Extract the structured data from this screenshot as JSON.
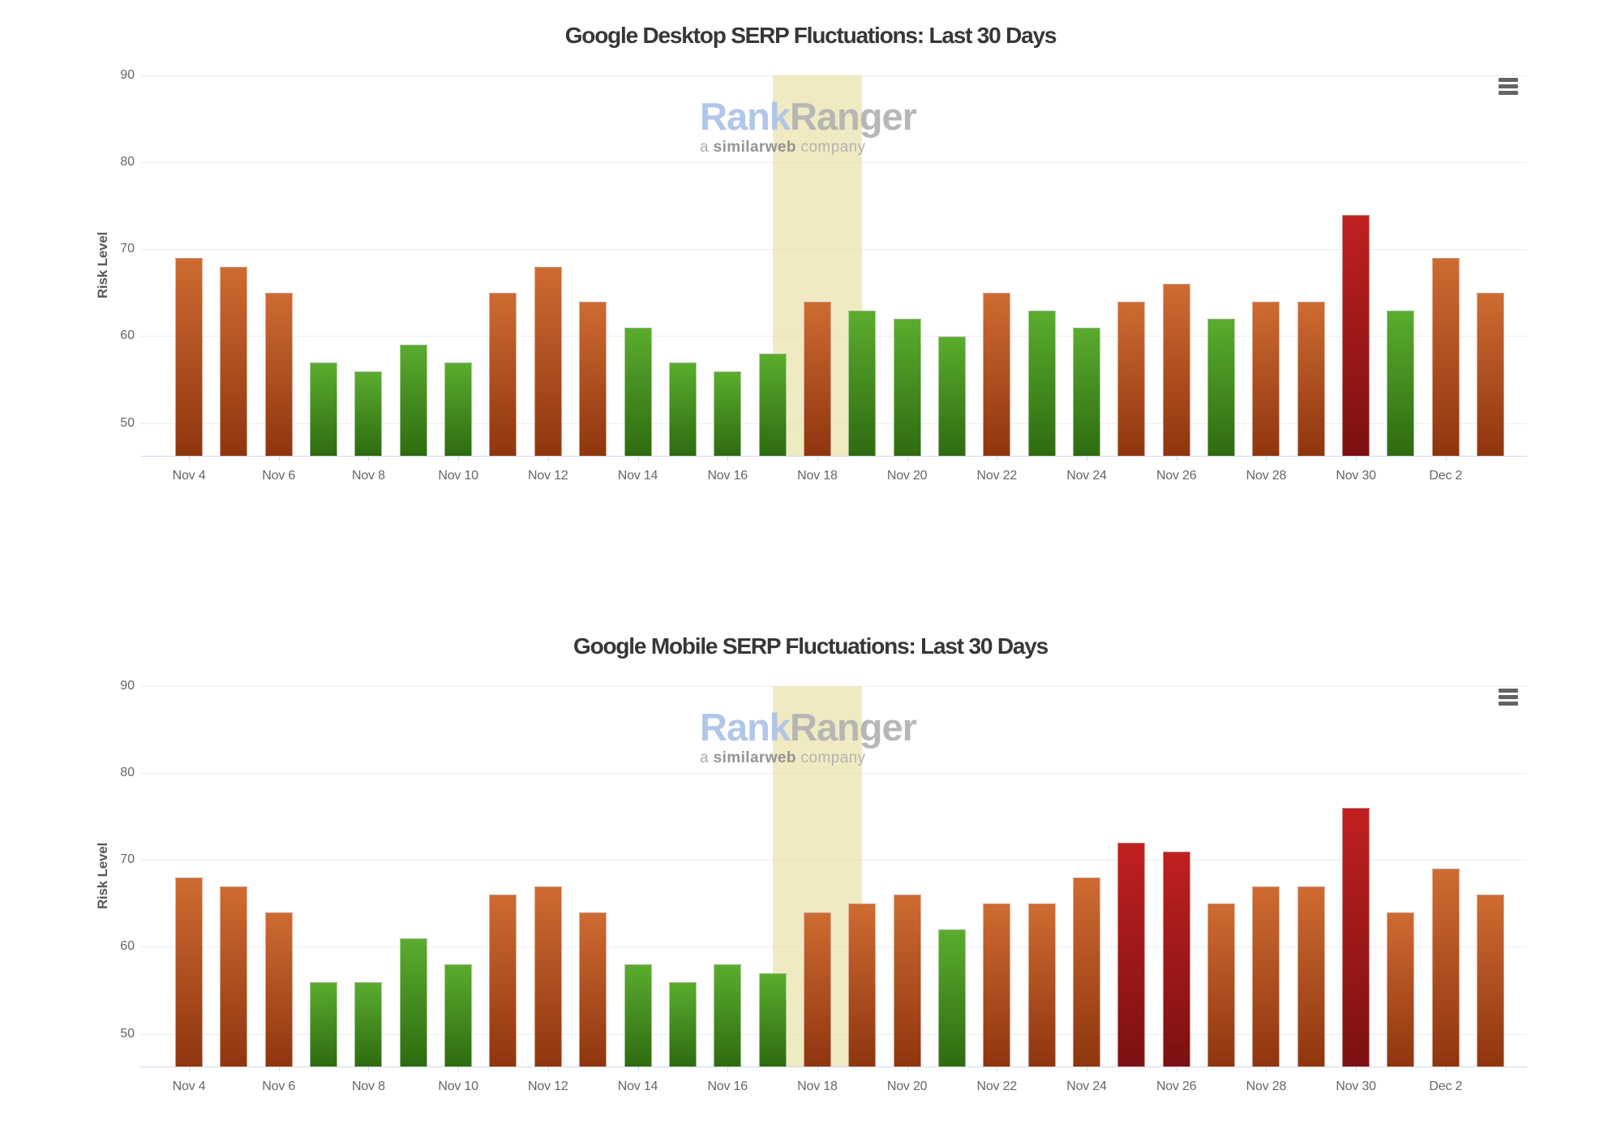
{
  "page": {
    "background": "#ffffff"
  },
  "palette": {
    "orange_top": "#ce6b32",
    "orange_bottom": "#8f350e",
    "green_top": "#5aac2e",
    "green_bottom": "#2e6b10",
    "red_top": "#c02020",
    "red_bottom": "#7c1111",
    "band": "rgba(230,220,153,0.6)",
    "gridline": "#ececec",
    "axis_line": "#ccd6eb",
    "tick_label": "#666666",
    "title": "#373737",
    "axis_title": "#5a5a5a",
    "menu_icon": "#646464",
    "watermark_blue": "#aec4e8",
    "watermark_gray": "#b4b4b4",
    "watermark_tag": "#a8a8a8",
    "watermark_tag_bold": "#8f8f8f",
    "watermark_tag_light": "#b0b0b0"
  },
  "watermark": {
    "brand_blue": "Rank",
    "brand_gray": "Ranger",
    "tagline_prefix": "a ",
    "tagline_bold": "similarweb",
    "tagline_suffix": " company"
  },
  "icons": {
    "menu": "hamburger-icon"
  },
  "chart_data": [
    {
      "type": "bar",
      "title": "Google Desktop SERP Fluctuations: Last 30 Days",
      "xlabel": "",
      "ylabel": "Risk Level",
      "ylim": [
        46,
        94
      ],
      "y_ticks": [
        90,
        80,
        70,
        60,
        50
      ],
      "grid": true,
      "legend": false,
      "x_tick_labels": [
        "Nov 4",
        "Nov 6",
        "Nov 8",
        "Nov 10",
        "Nov 12",
        "Nov 14",
        "Nov 16",
        "Nov 18",
        "Nov 20",
        "Nov 22",
        "Nov 24",
        "Nov 26",
        "Nov 28",
        "Nov 30",
        "Dec 2"
      ],
      "highlight_band": {
        "from_bar_index": 13,
        "to_bar_index": 15
      },
      "values": [
        69,
        68,
        65,
        57,
        56,
        59,
        57,
        65,
        68,
        64,
        61,
        57,
        56,
        58,
        64,
        63,
        62,
        60,
        65,
        63,
        61,
        64,
        66,
        62,
        64,
        64,
        74,
        63,
        69,
        65
      ],
      "bar_colors": [
        "orange",
        "orange",
        "orange",
        "green",
        "green",
        "green",
        "green",
        "orange",
        "orange",
        "orange",
        "green",
        "green",
        "green",
        "green",
        "orange",
        "green",
        "green",
        "green",
        "orange",
        "green",
        "green",
        "orange",
        "orange",
        "green",
        "orange",
        "orange",
        "red",
        "green",
        "orange",
        "orange"
      ]
    },
    {
      "type": "bar",
      "title": "Google Mobile SERP Fluctuations: Last 30 Days",
      "xlabel": "",
      "ylabel": "Risk Level",
      "ylim": [
        46,
        94
      ],
      "y_ticks": [
        90,
        80,
        70,
        60,
        50
      ],
      "grid": true,
      "legend": false,
      "x_tick_labels": [
        "Nov 4",
        "Nov 6",
        "Nov 8",
        "Nov 10",
        "Nov 12",
        "Nov 14",
        "Nov 16",
        "Nov 18",
        "Nov 20",
        "Nov 22",
        "Nov 24",
        "Nov 26",
        "Nov 28",
        "Nov 30",
        "Dec 2"
      ],
      "highlight_band": {
        "from_bar_index": 13,
        "to_bar_index": 15
      },
      "values": [
        68,
        67,
        64,
        56,
        56,
        61,
        58,
        66,
        67,
        64,
        58,
        56,
        58,
        57,
        64,
        65,
        66,
        62,
        65,
        65,
        68,
        72,
        71,
        65,
        67,
        67,
        76,
        64,
        69,
        66
      ],
      "bar_colors": [
        "orange",
        "orange",
        "orange",
        "green",
        "green",
        "green",
        "green",
        "orange",
        "orange",
        "orange",
        "green",
        "green",
        "green",
        "green",
        "orange",
        "orange",
        "orange",
        "green",
        "orange",
        "orange",
        "orange",
        "red",
        "red",
        "orange",
        "orange",
        "orange",
        "red",
        "orange",
        "orange",
        "orange"
      ]
    }
  ]
}
